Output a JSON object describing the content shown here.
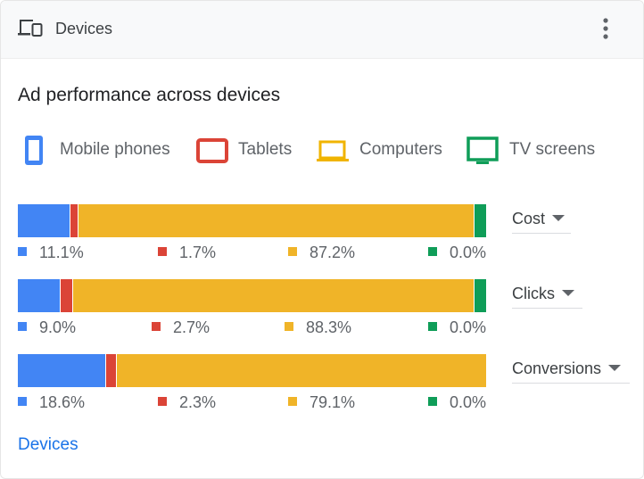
{
  "header": {
    "title": "Devices",
    "icon": "devices-icon",
    "menu_icon": "more-vert-icon"
  },
  "section_title": "Ad performance across devices",
  "legend": [
    {
      "label": "Mobile phones",
      "icon": "mobile-phone-icon",
      "color": "#4285f4"
    },
    {
      "label": "Tablets",
      "icon": "tablet-icon",
      "color": "#db4437"
    },
    {
      "label": "Computers",
      "icon": "computer-icon",
      "color": "#f0b400"
    },
    {
      "label": "TV screens",
      "icon": "tv-screen-icon",
      "color": "#0f9d58"
    }
  ],
  "colors": {
    "mobile": "#4285f4",
    "tablet": "#db4437",
    "computer": "#f0b428",
    "tv": "#0f9d58"
  },
  "chart_data": {
    "type": "bar",
    "stacked": true,
    "orientation": "horizontal",
    "categories": [
      "Cost",
      "Clicks",
      "Conversions"
    ],
    "series": [
      {
        "name": "Mobile phones",
        "values": [
          11.1,
          9.0,
          18.6
        ]
      },
      {
        "name": "Tablets",
        "values": [
          1.7,
          2.7,
          2.3
        ]
      },
      {
        "name": "Computers",
        "values": [
          87.2,
          88.3,
          79.1
        ]
      },
      {
        "name": "TV screens",
        "values": [
          0.0,
          0.0,
          0.0
        ]
      }
    ]
  },
  "metrics": [
    {
      "label": "Cost",
      "values": [
        "11.1%",
        "1.7%",
        "87.2%",
        "0.0%"
      ]
    },
    {
      "label": "Clicks",
      "values": [
        "9.0%",
        "2.7%",
        "88.3%",
        "0.0%"
      ]
    },
    {
      "label": "Conversions",
      "values": [
        "18.6%",
        "2.3%",
        "79.1%",
        "0.0%"
      ]
    }
  ],
  "footer_link": "Devices"
}
